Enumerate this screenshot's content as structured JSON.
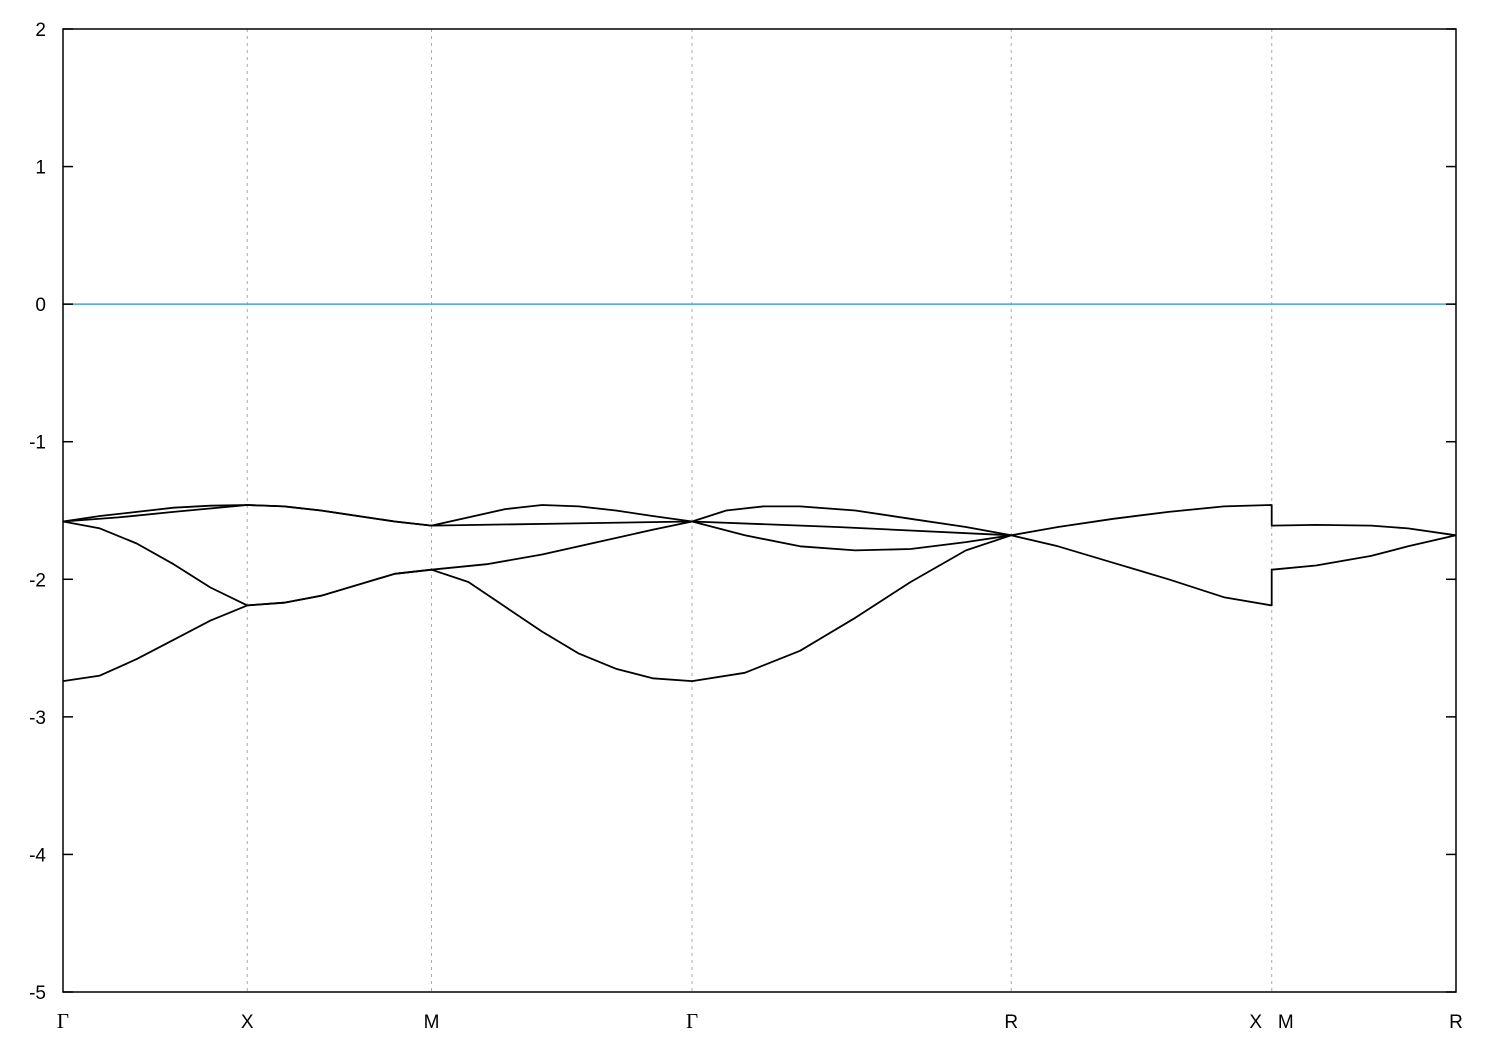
{
  "chart_data": {
    "type": "line",
    "title": "",
    "xlabel": "",
    "ylabel": "",
    "ylim": [
      -5,
      2
    ],
    "yticks": [
      -5,
      -4,
      -3,
      -2,
      -1,
      0,
      1,
      2
    ],
    "xlim": [
      0,
      3.78
    ],
    "grid": "vertical dashed lines at high-symmetry points",
    "legend": "none",
    "xticks": [
      {
        "k": 0,
        "label": "Γ"
      },
      {
        "k": 0.5,
        "label": "X"
      },
      {
        "k": 1.0,
        "label": "M"
      },
      {
        "k": 1.707,
        "label": "Γ"
      },
      {
        "k": 2.573,
        "label": "R"
      },
      {
        "k": 3.28,
        "label": "X"
      },
      {
        "k": 3.28,
        "label": "M"
      },
      {
        "k": 3.78,
        "label": "R"
      }
    ],
    "reference_line": {
      "y": 0,
      "color": "#3ea6dc"
    },
    "band_color": "#000000",
    "series": [
      {
        "points": [
          [
            0,
            -1.58
          ],
          [
            0.1,
            -1.54
          ],
          [
            0.2,
            -1.51
          ],
          [
            0.3,
            -1.48
          ],
          [
            0.4,
            -1.465
          ],
          [
            0.5,
            -1.46
          ],
          [
            0.6,
            -1.47
          ],
          [
            0.7,
            -1.5
          ],
          [
            0.8,
            -1.54
          ],
          [
            0.9,
            -1.58
          ],
          [
            1.0,
            -1.61
          ],
          [
            1.1,
            -1.55
          ],
          [
            1.2,
            -1.49
          ],
          [
            1.3,
            -1.46
          ],
          [
            1.4,
            -1.47
          ],
          [
            1.5,
            -1.5
          ],
          [
            1.6,
            -1.54
          ],
          [
            1.707,
            -1.58
          ],
          [
            1.8,
            -1.5
          ],
          [
            1.9,
            -1.47
          ],
          [
            2.0,
            -1.47
          ],
          [
            2.15,
            -1.5
          ],
          [
            2.3,
            -1.56
          ],
          [
            2.45,
            -1.62
          ],
          [
            2.573,
            -1.68
          ],
          [
            2.7,
            -1.62
          ],
          [
            2.85,
            -1.56
          ],
          [
            3.0,
            -1.51
          ],
          [
            3.15,
            -1.47
          ],
          [
            3.28,
            -1.46
          ],
          [
            3.28,
            -1.61
          ],
          [
            3.4,
            -1.605
          ],
          [
            3.55,
            -1.61
          ],
          [
            3.65,
            -1.63
          ],
          [
            3.78,
            -1.68
          ]
        ]
      },
      {
        "points": [
          [
            0,
            -1.58
          ],
          [
            0.15,
            -1.55
          ],
          [
            0.3,
            -1.51
          ],
          [
            0.5,
            -1.46
          ],
          [
            0.6,
            -1.47
          ],
          [
            0.7,
            -1.5
          ],
          [
            0.8,
            -1.54
          ],
          [
            0.9,
            -1.58
          ],
          [
            1.0,
            -1.61
          ],
          [
            1.35,
            -1.595
          ],
          [
            1.707,
            -1.58
          ],
          [
            2.1,
            -1.62
          ],
          [
            2.573,
            -1.68
          ],
          [
            2.7,
            -1.76
          ],
          [
            2.85,
            -1.88
          ],
          [
            3.0,
            -2.0
          ],
          [
            3.15,
            -2.13
          ],
          [
            3.28,
            -2.19
          ],
          [
            3.28,
            -1.93
          ],
          [
            3.4,
            -1.9
          ],
          [
            3.55,
            -1.83
          ],
          [
            3.65,
            -1.76
          ],
          [
            3.78,
            -1.68
          ]
        ]
      },
      {
        "points": [
          [
            0,
            -1.58
          ],
          [
            0.1,
            -1.63
          ],
          [
            0.2,
            -1.74
          ],
          [
            0.3,
            -1.89
          ],
          [
            0.4,
            -2.06
          ],
          [
            0.5,
            -2.19
          ],
          [
            0.6,
            -2.17
          ],
          [
            0.7,
            -2.12
          ],
          [
            0.8,
            -2.04
          ],
          [
            0.9,
            -1.96
          ],
          [
            1.0,
            -1.93
          ],
          [
            1.15,
            -1.89
          ],
          [
            1.3,
            -1.82
          ],
          [
            1.45,
            -1.73
          ],
          [
            1.6,
            -1.64
          ],
          [
            1.707,
            -1.58
          ],
          [
            1.85,
            -1.68
          ],
          [
            2.0,
            -1.76
          ],
          [
            2.15,
            -1.79
          ],
          [
            2.3,
            -1.78
          ],
          [
            2.45,
            -1.73
          ],
          [
            2.573,
            -1.68
          ]
        ]
      },
      {
        "points": [
          [
            0,
            -2.74
          ],
          [
            0.1,
            -2.7
          ],
          [
            0.2,
            -2.58
          ],
          [
            0.3,
            -2.44
          ],
          [
            0.4,
            -2.3
          ],
          [
            0.5,
            -2.19
          ],
          [
            0.6,
            -2.17
          ],
          [
            0.7,
            -2.12
          ],
          [
            0.8,
            -2.04
          ],
          [
            0.9,
            -1.96
          ],
          [
            1.0,
            -1.93
          ],
          [
            1.1,
            -2.02
          ],
          [
            1.2,
            -2.2
          ],
          [
            1.3,
            -2.38
          ],
          [
            1.4,
            -2.54
          ],
          [
            1.5,
            -2.65
          ],
          [
            1.6,
            -2.72
          ],
          [
            1.707,
            -2.74
          ],
          [
            1.85,
            -2.68
          ],
          [
            2.0,
            -2.52
          ],
          [
            2.15,
            -2.28
          ],
          [
            2.3,
            -2.02
          ],
          [
            2.45,
            -1.79
          ],
          [
            2.573,
            -1.68
          ]
        ]
      }
    ]
  }
}
